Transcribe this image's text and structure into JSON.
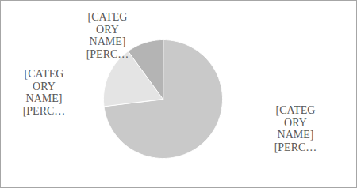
{
  "chart_data": {
    "type": "pie",
    "categories": [
      "[CATEGORY NAME] [PERC…",
      "[CATEGORY NAME] [PERC…",
      "[CATEGORY NAME] [PERC…"
    ],
    "values": [
      73,
      17,
      10
    ],
    "colors": [
      "#c9c9c9",
      "#e4e4e4",
      "#b4b4b4"
    ]
  }
}
